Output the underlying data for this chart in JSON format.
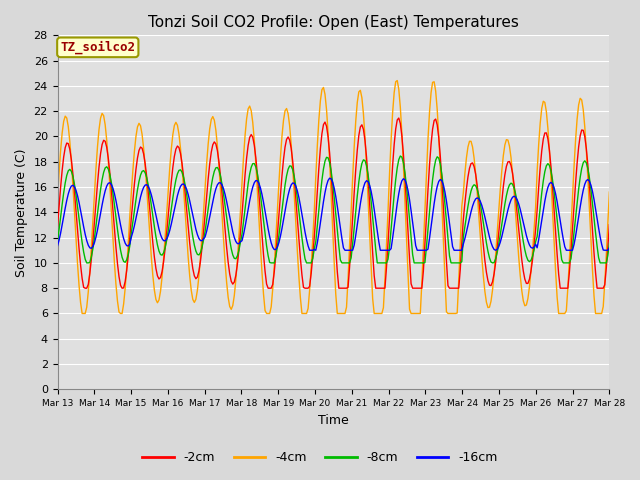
{
  "title": "Tonzi Soil CO2 Profile: Open (East) Temperatures",
  "xlabel": "Time",
  "ylabel": "Soil Temperature (C)",
  "ylim": [
    0,
    28
  ],
  "yticks": [
    0,
    2,
    4,
    6,
    8,
    10,
    12,
    14,
    16,
    18,
    20,
    22,
    24,
    26,
    28
  ],
  "legend_label": "TZ_soilco2",
  "legend_box_color": "#ffffcc",
  "legend_box_edge": "#999900",
  "legend_text_color": "#990000",
  "series_labels": [
    "-2cm",
    "-4cm",
    "-8cm",
    "-16cm"
  ],
  "series_colors": [
    "#ff0000",
    "#ffa500",
    "#00bb00",
    "#0000ff"
  ],
  "background_color": "#d9d9d9",
  "plot_bg_color": "#e0e0e0",
  "grid_color": "#ffffff",
  "n_days": 15,
  "start_day": 13
}
